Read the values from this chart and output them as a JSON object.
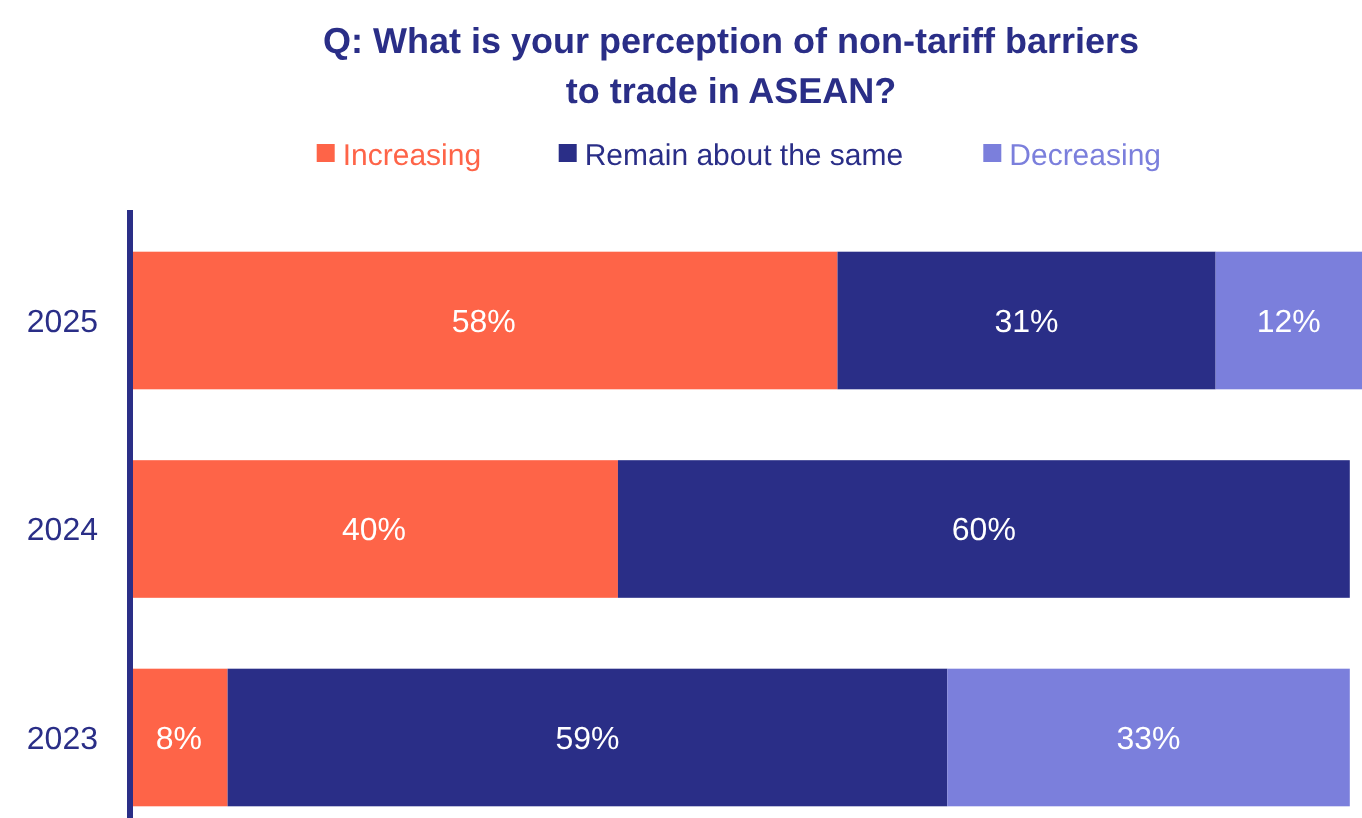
{
  "chart_data": {
    "type": "bar",
    "orientation": "horizontal",
    "stacked": true,
    "title": "Q: What is your perception of non-tariff barriers\nto trade in ASEAN?",
    "categories": [
      "2025",
      "2024",
      "2023"
    ],
    "legend": "top",
    "series": [
      {
        "name": "Increasing",
        "color": "#fe6448",
        "values": [
          58,
          40,
          8
        ],
        "value_labels": [
          "58%",
          "40%",
          "8%"
        ]
      },
      {
        "name": "Remain about the same",
        "color": "#2a2e87",
        "values": [
          31,
          60,
          59
        ],
        "value_labels": [
          "31%",
          "60%",
          "59%"
        ]
      },
      {
        "name": "Decreasing",
        "color": "#7b7fdc",
        "values": [
          12,
          0,
          33
        ],
        "value_labels": [
          "12%",
          null,
          "33%"
        ]
      }
    ]
  }
}
